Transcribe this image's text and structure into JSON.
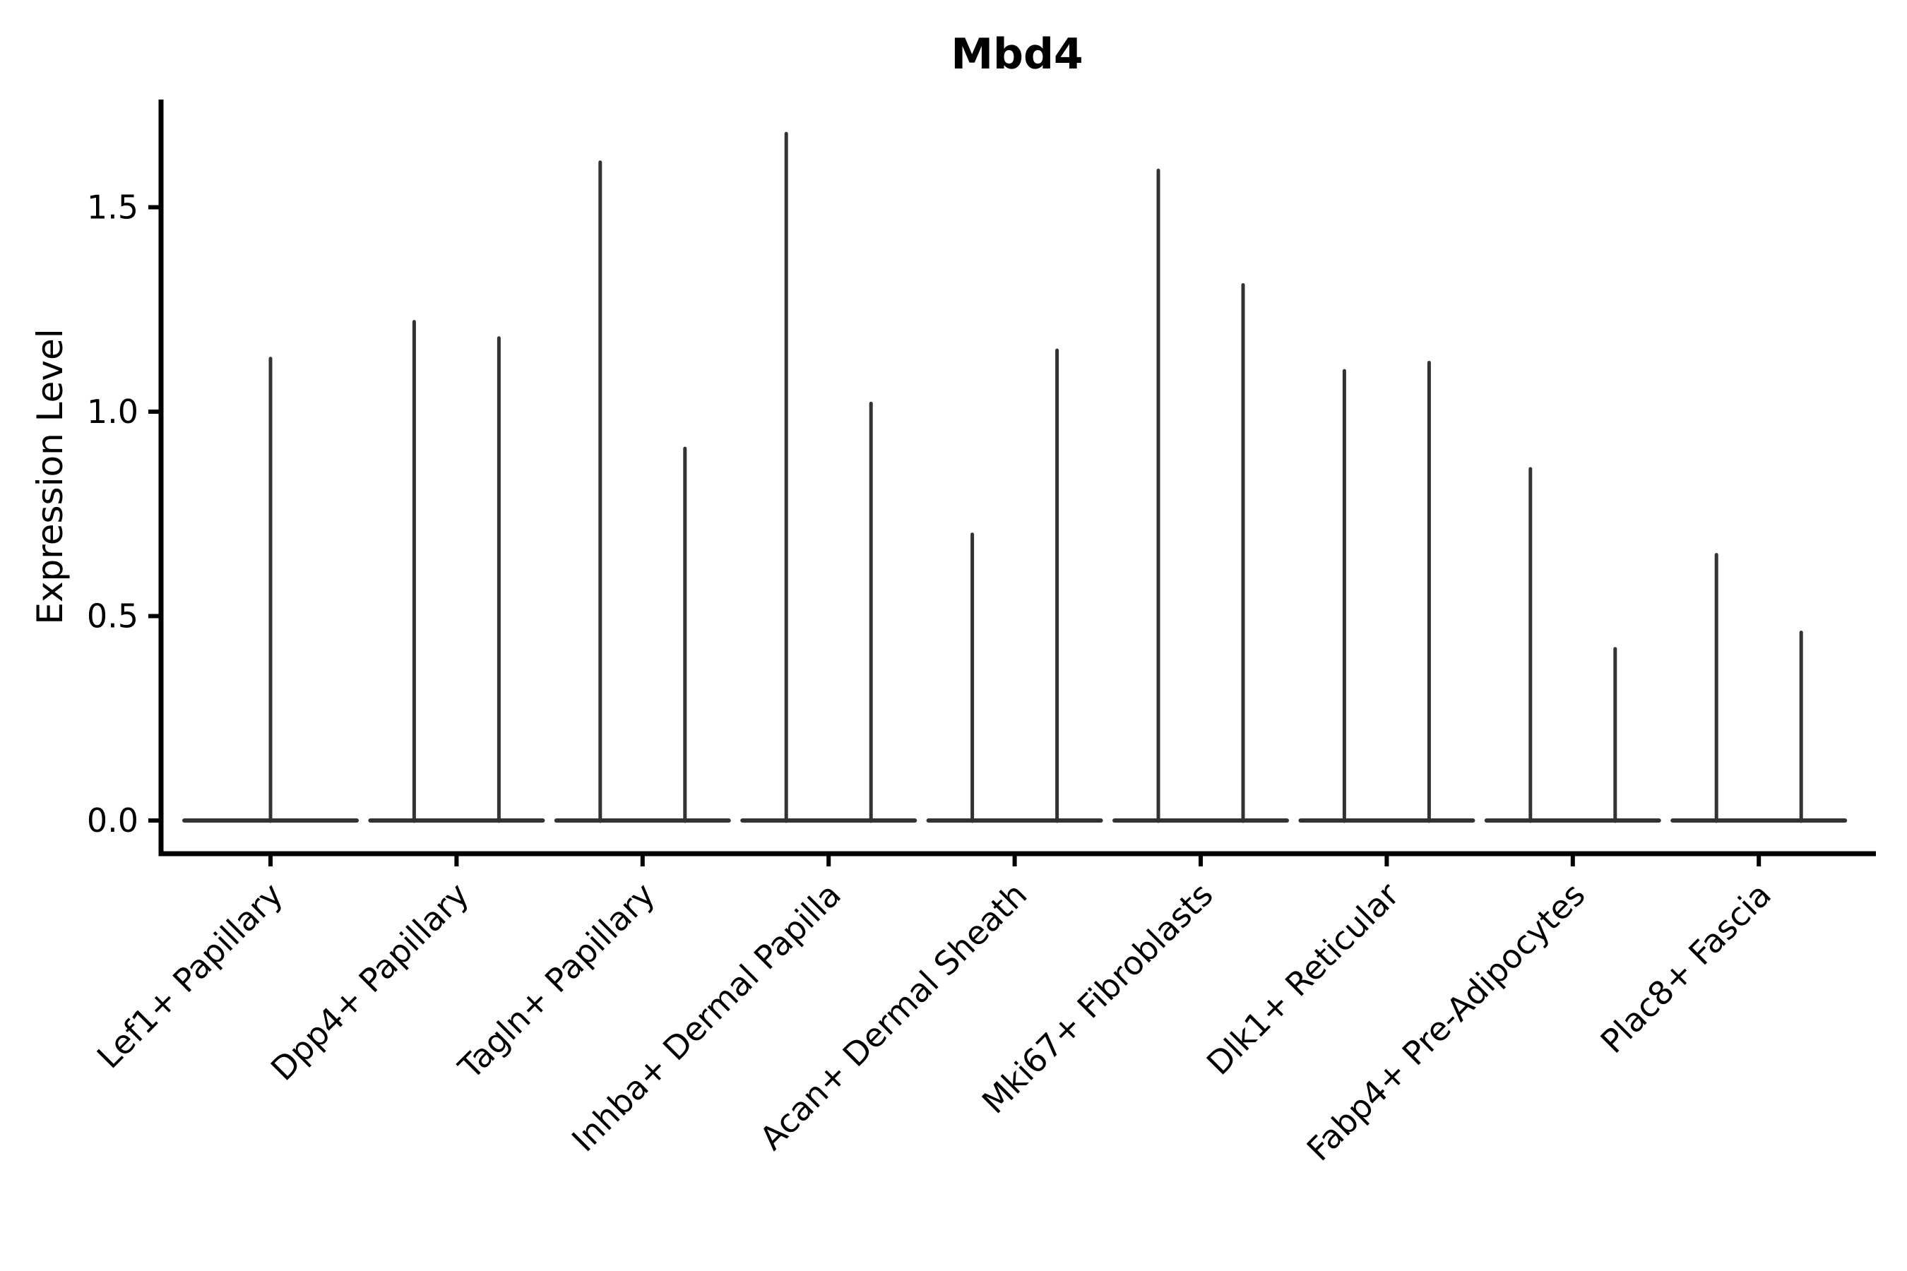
{
  "chart_data": {
    "type": "violin",
    "title": "Mbd4",
    "ylabel": "Expression Level",
    "xlabel": "",
    "yticks": [
      0.0,
      0.5,
      1.0,
      1.5
    ],
    "ylim": [
      -0.08,
      1.76
    ],
    "grid": false,
    "legend": "none",
    "background_color": "#ffffff",
    "axis_color": "#000000",
    "violin_color": "#333333",
    "x_tick_label_rotation_deg": 45,
    "categories": [
      "Lef1+ Papillary",
      "Dpp4+ Papillary",
      "Tagln+ Papillary",
      "Inhba+ Dermal Papilla",
      "Acan+ Dermal Sheath",
      "Mki67+ Fibroblasts",
      "Dlk1+ Reticular",
      "Fabp4+ Pre-Adipocytes",
      "Plac8+ Fascia"
    ],
    "violins": [
      {
        "category": "Lef1+ Papillary",
        "spikes": [
          {
            "pos": "center",
            "max": 1.13
          }
        ]
      },
      {
        "category": "Dpp4+ Papillary",
        "spikes": [
          {
            "pos": "left",
            "max": 1.22
          },
          {
            "pos": "right",
            "max": 1.18
          }
        ]
      },
      {
        "category": "Tagln+ Papillary",
        "spikes": [
          {
            "pos": "left",
            "max": 1.61
          },
          {
            "pos": "right",
            "max": 0.91
          }
        ]
      },
      {
        "category": "Inhba+ Dermal Papilla",
        "spikes": [
          {
            "pos": "left",
            "max": 1.68
          },
          {
            "pos": "right",
            "max": 1.02
          }
        ]
      },
      {
        "category": "Acan+ Dermal Sheath",
        "spikes": [
          {
            "pos": "left",
            "max": 0.7
          },
          {
            "pos": "right",
            "max": 1.15
          }
        ]
      },
      {
        "category": "Mki67+ Fibroblasts",
        "spikes": [
          {
            "pos": "left",
            "max": 1.59
          },
          {
            "pos": "right",
            "max": 1.31
          }
        ]
      },
      {
        "category": "Dlk1+ Reticular",
        "spikes": [
          {
            "pos": "left",
            "max": 1.1
          },
          {
            "pos": "right",
            "max": 1.12
          }
        ]
      },
      {
        "category": "Fabp4+ Pre-Adipocytes",
        "spikes": [
          {
            "pos": "left",
            "max": 0.86
          },
          {
            "pos": "right",
            "max": 0.42
          }
        ]
      },
      {
        "category": "Plac8+ Fascia",
        "spikes": [
          {
            "pos": "left",
            "max": 0.65
          },
          {
            "pos": "right",
            "max": 0.46
          }
        ]
      }
    ]
  }
}
